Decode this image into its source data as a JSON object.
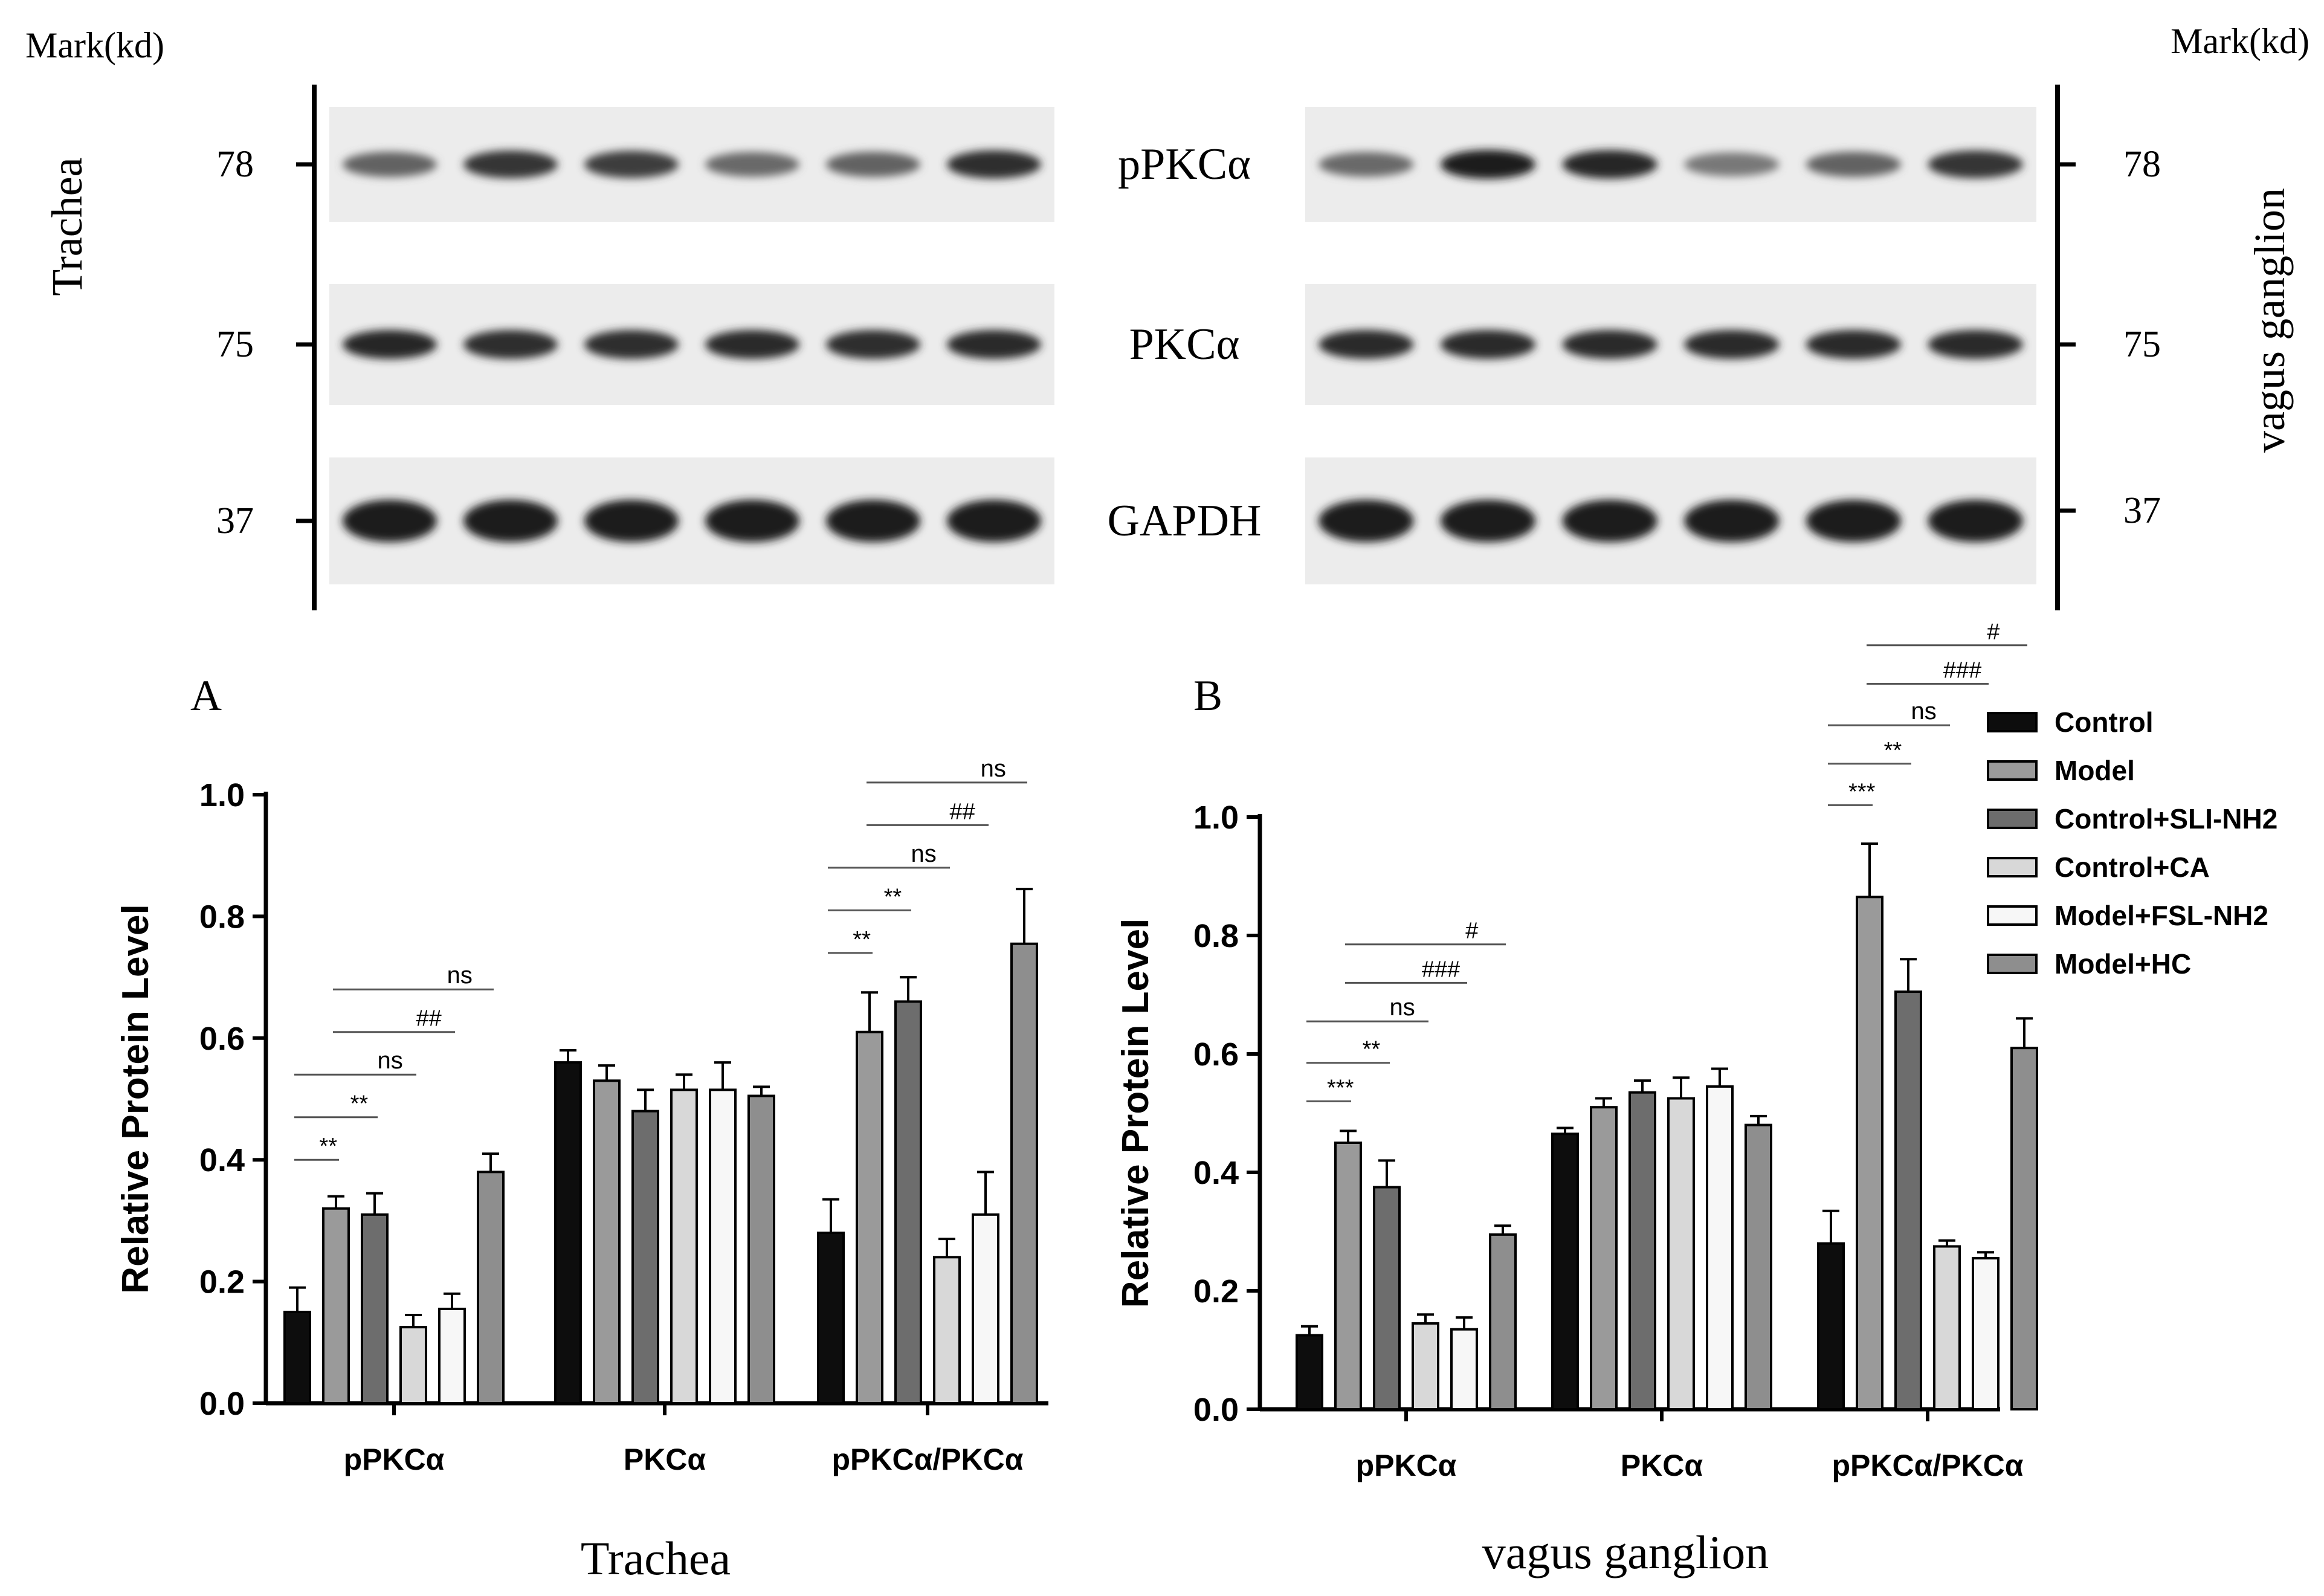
{
  "blot": {
    "mark_label": "Mark(kd)",
    "left_tissue": "Trachea",
    "right_tissue": "vagus ganglion",
    "proteins": [
      "pPKCα",
      "PKCα",
      "GAPDH"
    ],
    "markers": [
      "78",
      "75",
      "37"
    ],
    "band_intensity": {
      "left": [
        [
          0.55,
          0.85,
          0.8,
          0.5,
          0.55,
          0.9
        ],
        [
          0.95,
          0.9,
          0.9,
          0.92,
          0.9,
          0.92
        ],
        [
          1.0,
          1.0,
          1.0,
          1.0,
          1.0,
          1.0
        ]
      ],
      "right": [
        [
          0.5,
          1.0,
          0.95,
          0.4,
          0.55,
          0.85
        ],
        [
          0.92,
          0.92,
          0.92,
          0.92,
          0.92,
          0.92
        ],
        [
          1.0,
          1.0,
          1.0,
          1.0,
          1.0,
          1.0
        ]
      ]
    }
  },
  "legend": {
    "entries": [
      "Control",
      "Model",
      "Control+SLI-NH2",
      "Control+CA",
      "Model+FSL-NH2",
      "Model+HC"
    ],
    "colors": [
      "#0d0d0d",
      "#9a9a9a",
      "#6d6d6d",
      "#d8d8d8",
      "#f7f7f7",
      "#8e8e8e"
    ]
  },
  "chart_data": [
    {
      "type": "bar",
      "panel": "A",
      "title": "Trachea",
      "ylabel": "Relative Protein Level",
      "ylim": [
        0,
        1.0
      ],
      "yticks": [
        "0.0",
        "0.2",
        "0.4",
        "0.6",
        "0.8",
        "1.0"
      ],
      "categories": [
        "pPKCα",
        "PKCα",
        "pPKCα/PKCα"
      ],
      "series": [
        {
          "name": "Control",
          "values": [
            0.15,
            0.56,
            0.28
          ],
          "errors": [
            0.04,
            0.02,
            0.055
          ]
        },
        {
          "name": "Model",
          "values": [
            0.32,
            0.53,
            0.61
          ],
          "errors": [
            0.02,
            0.025,
            0.065
          ]
        },
        {
          "name": "Control+SLI-NH2",
          "values": [
            0.31,
            0.48,
            0.66
          ],
          "errors": [
            0.035,
            0.035,
            0.04
          ]
        },
        {
          "name": "Control+CA",
          "values": [
            0.125,
            0.515,
            0.24
          ],
          "errors": [
            0.02,
            0.025,
            0.03
          ]
        },
        {
          "name": "Model+FSL-NH2",
          "values": [
            0.155,
            0.515,
            0.31
          ],
          "errors": [
            0.025,
            0.045,
            0.07
          ]
        },
        {
          "name": "Model+HC",
          "values": [
            0.38,
            0.505,
            0.755
          ],
          "errors": [
            0.03,
            0.015,
            0.09
          ]
        }
      ],
      "significance": [
        {
          "category": 0,
          "from": 0,
          "to": 1,
          "label": "**",
          "level": 0.4
        },
        {
          "category": 0,
          "from": 0,
          "to": 2,
          "label": "**",
          "level": 0.47
        },
        {
          "category": 0,
          "from": 0,
          "to": 3,
          "label": "ns",
          "level": 0.54
        },
        {
          "category": 0,
          "from": 1,
          "to": 4,
          "label": "##",
          "level": 0.61
        },
        {
          "category": 0,
          "from": 1,
          "to": 5,
          "label": "ns",
          "level": 0.68
        },
        {
          "category": 2,
          "from": 0,
          "to": 1,
          "label": "**",
          "level": 0.74
        },
        {
          "category": 2,
          "from": 0,
          "to": 2,
          "label": "**",
          "level": 0.81
        },
        {
          "category": 2,
          "from": 0,
          "to": 3,
          "label": "ns",
          "level": 0.88
        },
        {
          "category": 2,
          "from": 1,
          "to": 4,
          "label": "##",
          "level": 0.95
        },
        {
          "category": 2,
          "from": 1,
          "to": 5,
          "label": "ns",
          "level": 1.02
        }
      ]
    },
    {
      "type": "bar",
      "panel": "B",
      "title": "vagus ganglion",
      "ylabel": "Relative Protein Level",
      "ylim": [
        0,
        1.0
      ],
      "yticks": [
        "0.0",
        "0.2",
        "0.4",
        "0.6",
        "0.8",
        "1.0"
      ],
      "categories": [
        "pPKCα",
        "PKCα",
        "pPKCα/PKCα"
      ],
      "series": [
        {
          "name": "Control",
          "values": [
            0.125,
            0.465,
            0.28
          ],
          "errors": [
            0.015,
            0.01,
            0.055
          ]
        },
        {
          "name": "Model",
          "values": [
            0.45,
            0.51,
            0.865
          ],
          "errors": [
            0.02,
            0.015,
            0.09
          ]
        },
        {
          "name": "Control+SLI-NH2",
          "values": [
            0.375,
            0.535,
            0.705
          ],
          "errors": [
            0.045,
            0.02,
            0.055
          ]
        },
        {
          "name": "Control+CA",
          "values": [
            0.145,
            0.525,
            0.275
          ],
          "errors": [
            0.015,
            0.035,
            0.01
          ]
        },
        {
          "name": "Model+FSL-NH2",
          "values": [
            0.135,
            0.545,
            0.255
          ],
          "errors": [
            0.02,
            0.03,
            0.01
          ]
        },
        {
          "name": "Model+HC",
          "values": [
            0.295,
            0.48,
            0.61
          ],
          "errors": [
            0.015,
            0.015,
            0.05
          ]
        }
      ],
      "significance": [
        {
          "category": 0,
          "from": 0,
          "to": 1,
          "label": "***",
          "level": 0.52
        },
        {
          "category": 0,
          "from": 0,
          "to": 2,
          "label": "**",
          "level": 0.585
        },
        {
          "category": 0,
          "from": 0,
          "to": 3,
          "label": "ns",
          "level": 0.655
        },
        {
          "category": 0,
          "from": 1,
          "to": 4,
          "label": "###",
          "level": 0.72
        },
        {
          "category": 0,
          "from": 1,
          "to": 5,
          "label": "#",
          "level": 0.785
        },
        {
          "category": 2,
          "from": 0,
          "to": 1,
          "label": "***",
          "level": 1.02
        },
        {
          "category": 2,
          "from": 0,
          "to": 2,
          "label": "**",
          "level": 1.09
        },
        {
          "category": 2,
          "from": 0,
          "to": 3,
          "label": "ns",
          "level": 1.155
        },
        {
          "category": 2,
          "from": 1,
          "to": 4,
          "label": "###",
          "level": 1.225
        },
        {
          "category": 2,
          "from": 1,
          "to": 5,
          "label": "#",
          "level": 1.29
        }
      ]
    }
  ]
}
